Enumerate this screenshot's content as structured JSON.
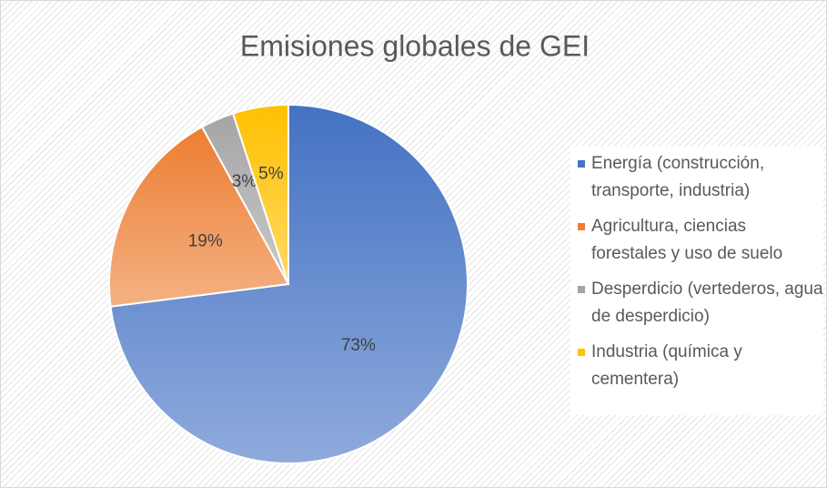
{
  "chart_data": {
    "type": "pie",
    "title": "Emisiones globales de GEI",
    "categories": [
      "Energía (construcción, transporte, industria)",
      "Agricultura, ciencias forestales y uso de suelo",
      "Desperdicio (vertederos, agua de desperdicio)",
      "Industria (química y cementera)"
    ],
    "values": [
      73,
      19,
      3,
      5
    ],
    "value_labels": [
      "73%",
      "19%",
      "3%",
      "5%"
    ],
    "colors": [
      "#4472c4",
      "#ed7d31",
      "#a5a5a5",
      "#ffc000"
    ],
    "legend": "right"
  }
}
